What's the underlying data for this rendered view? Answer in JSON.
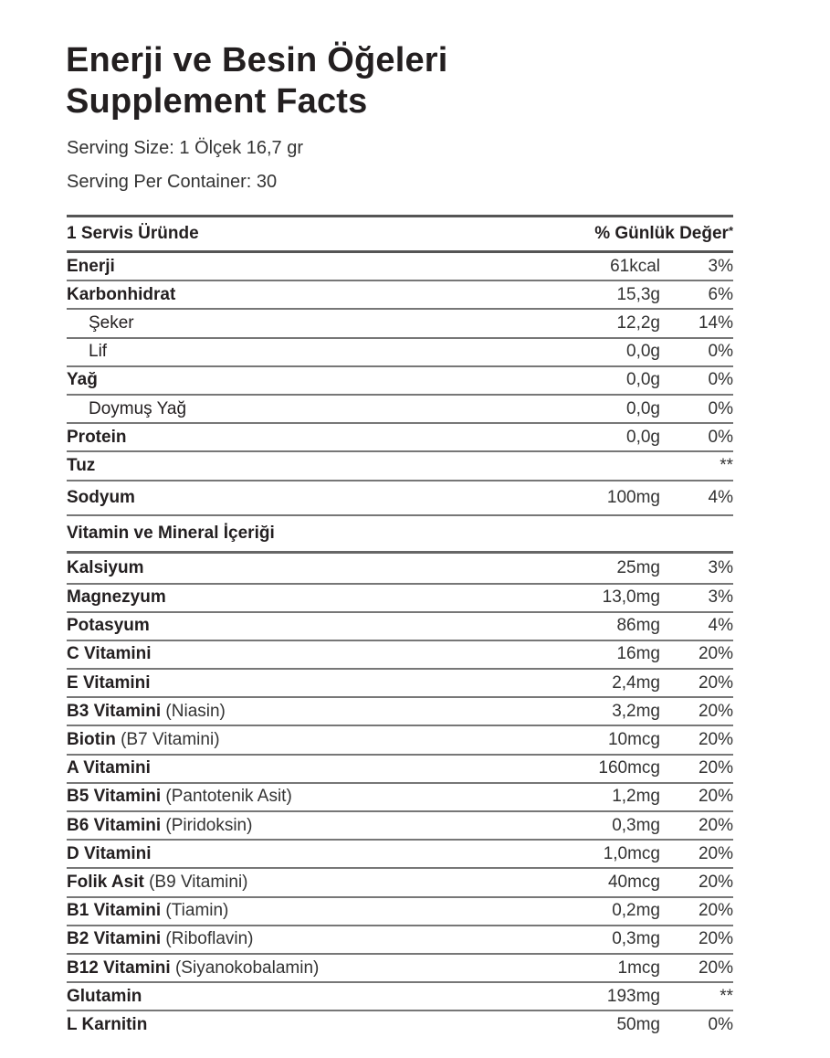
{
  "title_line1": "Enerji ve Besin Öğeleri",
  "title_line2": "Supplement Facts",
  "serving_size": "Serving Size: 1 Ölçek 16,7 gr",
  "serving_per_container": "Serving Per Container: 30",
  "header": {
    "left": "1 Servis Üründe",
    "right": "% Günlük Değer",
    "right_mark": "*"
  },
  "rows": [
    {
      "name": "Enerji",
      "sub": "",
      "amount": "61kcal",
      "dv": "3%",
      "bold": true
    },
    {
      "name": "Karbonhidrat",
      "sub": "",
      "amount": "15,3g",
      "dv": "6%",
      "bold": true
    },
    {
      "name": "Şeker",
      "sub": "",
      "amount": "12,2g",
      "dv": "14%",
      "bold": false,
      "indent": true
    },
    {
      "name": "Lif",
      "sub": "",
      "amount": "0,0g",
      "dv": "0%",
      "bold": false,
      "indent": true
    },
    {
      "name": "Yağ",
      "sub": "",
      "amount": "0,0g",
      "dv": "0%",
      "bold": true
    },
    {
      "name": "Doymuş Yağ",
      "sub": "",
      "amount": "0,0g",
      "dv": "0%",
      "bold": false,
      "indent": true
    },
    {
      "name": "Protein",
      "sub": "",
      "amount": "0,0g",
      "dv": "0%",
      "bold": true
    },
    {
      "name": "Tuz",
      "sub": "",
      "amount": "",
      "dv": "**",
      "bold": true
    },
    {
      "name": "Sodyum",
      "sub": "",
      "amount": "100mg",
      "dv": "4%",
      "bold": true
    }
  ],
  "section_title": "Vitamin ve Mineral İçeriği",
  "vitamins": [
    {
      "name": "Kalsiyum",
      "sub": "",
      "amount": "25mg",
      "dv": "3%"
    },
    {
      "name": "Magnezyum",
      "sub": "",
      "amount": "13,0mg",
      "dv": "3%"
    },
    {
      "name": "Potasyum",
      "sub": "",
      "amount": "86mg",
      "dv": "4%"
    },
    {
      "name": "C Vitamini",
      "sub": "",
      "amount": "16mg",
      "dv": "20%"
    },
    {
      "name": "E Vitamini",
      "sub": "",
      "amount": "2,4mg",
      "dv": "20%"
    },
    {
      "name": "B3 Vitamini",
      "sub": "(Niasin)",
      "amount": "3,2mg",
      "dv": "20%"
    },
    {
      "name": "Biotin",
      "sub": "(B7 Vitamini)",
      "amount": "10mcg",
      "dv": "20%"
    },
    {
      "name": "A Vitamini",
      "sub": "",
      "amount": "160mcg",
      "dv": "20%"
    },
    {
      "name": "B5 Vitamini",
      "sub": "(Pantotenik Asit)",
      "amount": "1,2mg",
      "dv": "20%"
    },
    {
      "name": "B6 Vitamini",
      "sub": "(Piridoksin)",
      "amount": "0,3mg",
      "dv": "20%"
    },
    {
      "name": "D Vitamini",
      "sub": "",
      "amount": "1,0mcg",
      "dv": "20%"
    },
    {
      "name": "Folik Asit",
      "sub": "(B9 Vitamini)",
      "amount": "40mcg",
      "dv": "20%"
    },
    {
      "name": "B1 Vitamini",
      "sub": "(Tiamin)",
      "amount": "0,2mg",
      "dv": "20%"
    },
    {
      "name": "B2 Vitamini",
      "sub": "(Riboflavin)",
      "amount": "0,3mg",
      "dv": "20%"
    },
    {
      "name": "B12 Vitamini",
      "sub": "(Siyanokobalamin)",
      "amount": "1mcg",
      "dv": "20%"
    },
    {
      "name": "Glutamin",
      "sub": "",
      "amount": "193mg",
      "dv": "**"
    },
    {
      "name": "L Karnitin",
      "sub": "",
      "amount": "50mg",
      "dv": "0%"
    }
  ]
}
